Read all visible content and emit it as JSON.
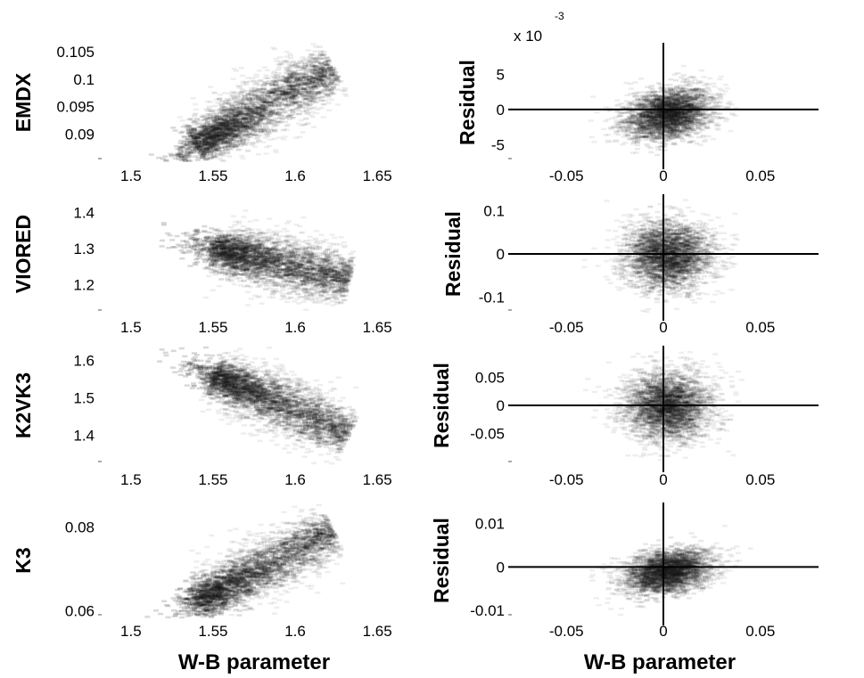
{
  "chart_data": [
    {
      "type": "heatmap",
      "panel": "left-1",
      "ylabel": "EMDX",
      "xlabel": "",
      "xlim": [
        1.48,
        1.67
      ],
      "ylim": [
        0.0855,
        0.106
      ],
      "xticks": [
        1.5,
        1.55,
        1.6,
        1.65
      ],
      "xtick_labels": [
        "1.5",
        "1.55",
        "1.6",
        "1.65"
      ],
      "yticks": [
        0.09,
        0.095,
        0.1,
        0.105
      ],
      "ytick_labels": [
        "0.09",
        "0.095",
        "0.1",
        "0.105"
      ],
      "density_trend": {
        "x": [
          1.54,
          1.56,
          1.58,
          1.6,
          1.62
        ],
        "y": [
          0.0885,
          0.089,
          0.092,
          0.097,
          0.102
        ]
      }
    },
    {
      "type": "heatmap",
      "panel": "right-1",
      "ylabel": "Residual",
      "xlabel": "",
      "xlim": [
        -0.08,
        0.08
      ],
      "ylim": [
        -0.007,
        0.009
      ],
      "y_exponent_label": "x 10",
      "y_exponent_power": "-3",
      "xticks": [
        -0.05,
        0,
        0.05
      ],
      "xtick_labels": [
        "-0.05",
        "0",
        "0.05"
      ],
      "yticks": [
        -0.005,
        0,
        0.005
      ],
      "ytick_labels": [
        "-5",
        "0",
        "5"
      ],
      "reference_lines": {
        "x": 0,
        "y": 0
      }
    },
    {
      "type": "heatmap",
      "panel": "left-2",
      "ylabel": "VIORED",
      "xlabel": "",
      "xlim": [
        1.48,
        1.67
      ],
      "ylim": [
        1.13,
        1.44
      ],
      "xticks": [
        1.5,
        1.55,
        1.6,
        1.65
      ],
      "xtick_labels": [
        "1.5",
        "1.55",
        "1.6",
        "1.65"
      ],
      "yticks": [
        1.2,
        1.3,
        1.4
      ],
      "ytick_labels": [
        "1.2",
        "1.3",
        "1.4"
      ],
      "density_trend": {
        "x": [
          1.55,
          1.57,
          1.59,
          1.61,
          1.63
        ],
        "y": [
          1.3,
          1.28,
          1.26,
          1.24,
          1.22
        ]
      }
    },
    {
      "type": "heatmap",
      "panel": "right-2",
      "ylabel": "Residual",
      "xlabel": "",
      "xlim": [
        -0.08,
        0.08
      ],
      "ylim": [
        -0.13,
        0.13
      ],
      "xticks": [
        -0.05,
        0,
        0.05
      ],
      "xtick_labels": [
        "-0.05",
        "0",
        "0.05"
      ],
      "yticks": [
        -0.1,
        0,
        0.1
      ],
      "ytick_labels": [
        "-0.1",
        "0",
        "0.1"
      ],
      "reference_lines": {
        "x": 0,
        "y": 0
      }
    },
    {
      "type": "heatmap",
      "panel": "left-3",
      "ylabel": "K2VK3",
      "xlabel": "",
      "xlim": [
        1.48,
        1.67
      ],
      "ylim": [
        1.33,
        1.63
      ],
      "xticks": [
        1.5,
        1.55,
        1.6,
        1.65
      ],
      "xtick_labels": [
        "1.5",
        "1.55",
        "1.6",
        "1.65"
      ],
      "yticks": [
        1.4,
        1.5,
        1.6
      ],
      "ytick_labels": [
        "1.4",
        "1.5",
        "1.6"
      ],
      "density_trend": {
        "x": [
          1.55,
          1.57,
          1.59,
          1.61,
          1.63
        ],
        "y": [
          1.56,
          1.53,
          1.49,
          1.45,
          1.41
        ]
      }
    },
    {
      "type": "heatmap",
      "panel": "right-3",
      "ylabel": "Residual",
      "xlabel": "",
      "xlim": [
        -0.08,
        0.08
      ],
      "ylim": [
        -0.1,
        0.1
      ],
      "xticks": [
        -0.05,
        0,
        0.05
      ],
      "xtick_labels": [
        "-0.05",
        "0",
        "0.05"
      ],
      "yticks": [
        -0.05,
        0,
        0.05
      ],
      "ytick_labels": [
        "-0.05",
        "0",
        "0.05"
      ],
      "reference_lines": {
        "x": 0,
        "y": 0
      }
    },
    {
      "type": "heatmap",
      "panel": "left-4",
      "ylabel": "K3",
      "xlabel": "W-B parameter",
      "xlim": [
        1.48,
        1.67
      ],
      "ylim": [
        0.059,
        0.085
      ],
      "xticks": [
        1.5,
        1.55,
        1.6,
        1.65
      ],
      "xtick_labels": [
        "1.5",
        "1.55",
        "1.6",
        "1.65"
      ],
      "yticks": [
        0.06,
        0.08
      ],
      "ytick_labels": [
        "0.06",
        "0.08"
      ],
      "density_trend": {
        "x": [
          1.54,
          1.56,
          1.58,
          1.6,
          1.62
        ],
        "y": [
          0.0625,
          0.064,
          0.068,
          0.074,
          0.079
        ]
      }
    },
    {
      "type": "heatmap",
      "panel": "right-4",
      "ylabel": "Residual",
      "xlabel": "W-B parameter",
      "xlim": [
        -0.08,
        0.08
      ],
      "ylim": [
        -0.011,
        0.014
      ],
      "xticks": [
        -0.05,
        0,
        0.05
      ],
      "xtick_labels": [
        "-0.05",
        "0",
        "0.05"
      ],
      "yticks": [
        -0.01,
        0,
        0.01
      ],
      "ytick_labels": [
        "-0.01",
        "0",
        "0.01"
      ],
      "reference_lines": {
        "x": 0,
        "y": 0
      }
    }
  ]
}
